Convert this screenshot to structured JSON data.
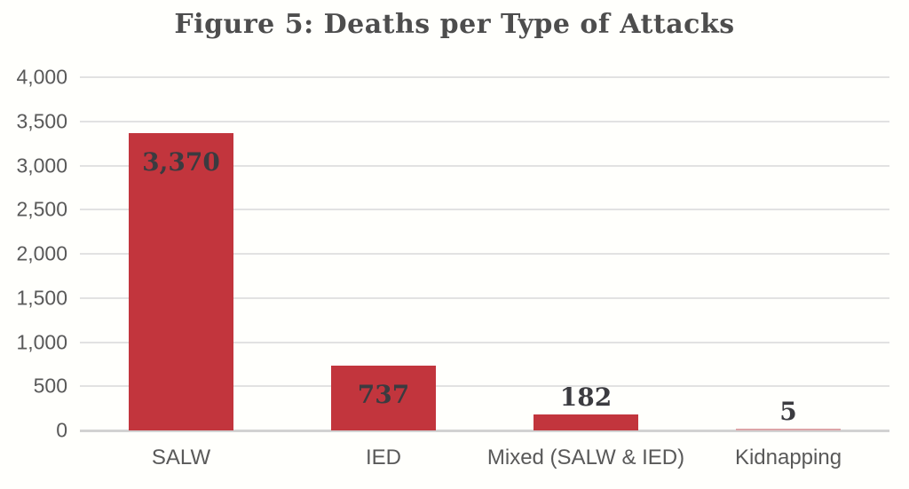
{
  "chart_data": {
    "type": "bar",
    "title": "Figure 5: Deaths per Type of Attacks",
    "categories": [
      "SALW",
      "IED",
      "Mixed (SALW & IED)",
      "Kidnapping"
    ],
    "values": [
      3370,
      737,
      182,
      5
    ],
    "value_labels": [
      "3,370",
      "737",
      "182",
      "5"
    ],
    "value_label_positions": [
      "inside",
      "inside",
      "outside",
      "outside"
    ],
    "bar_colors": [
      "#c2353d",
      "#c2353d",
      "#c2353d",
      "#dca4a7"
    ],
    "xlabel": "",
    "ylabel": "",
    "ylim": [
      0,
      4000
    ],
    "yticks": [
      0,
      500,
      1000,
      1500,
      2000,
      2500,
      3000,
      3500,
      4000
    ],
    "ytick_labels": [
      "0",
      "500",
      "1,000",
      "1,500",
      "2,000",
      "2,500",
      "3,000",
      "3,500",
      "4,000"
    ],
    "grid": true,
    "legend": false,
    "colors": {
      "bar": "#c2353d",
      "gridline": "#e2e2e2",
      "axis_line": "#d2d2d2",
      "title_text": "#4d4d4d",
      "tick_text": "#595959",
      "data_label_text": "#3b3b40",
      "background": "#fffffc"
    }
  }
}
